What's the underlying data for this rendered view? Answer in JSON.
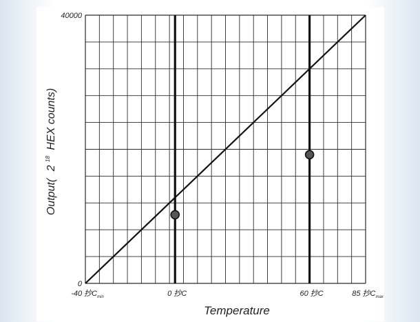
{
  "chart_data": {
    "type": "line",
    "xlabel": "Temperature",
    "ylabel": {
      "prefix": "Output(",
      "base": "2",
      "exponent": "18",
      "suffix": "HEX counts)"
    },
    "xlim": [
      -40,
      85
    ],
    "ylim": [
      0,
      40000
    ],
    "y_ticks": [
      {
        "value": 0,
        "label": "0"
      },
      {
        "value": 40000,
        "label": "40000"
      }
    ],
    "x_ticks": [
      {
        "value": -40,
        "label": "-40 抄C",
        "sub": "min"
      },
      {
        "value": 0,
        "label": "0 抄C",
        "sub": ""
      },
      {
        "value": 60,
        "label": "60 抄C",
        "sub": ""
      },
      {
        "value": 85,
        "label": "85 抄C",
        "sub": "max"
      }
    ],
    "grid": true,
    "grid_columns": 20,
    "grid_rows": 10,
    "reference_lines_x": [
      0,
      60
    ],
    "series": [
      {
        "x": [
          -40,
          85
        ],
        "y": [
          0,
          40000
        ],
        "markers": [
          {
            "x": 0,
            "y": 10240
          },
          {
            "x": 60,
            "y": 19200
          }
        ]
      }
    ]
  }
}
